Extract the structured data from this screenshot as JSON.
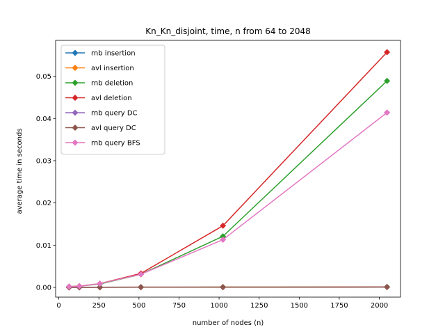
{
  "chart_data": {
    "type": "line",
    "title": "Kn_Kn_disjoint, time, n from 64 to 2048",
    "xlabel": "number of nodes (n)",
    "ylabel": "average time in seconds",
    "xlim": [
      -20,
      2132
    ],
    "ylim": [
      -0.0023,
      0.0585
    ],
    "xticks": [
      0,
      250,
      500,
      750,
      1000,
      1250,
      1500,
      1750,
      2000
    ],
    "yticks": [
      0.0,
      0.01,
      0.02,
      0.03,
      0.04,
      0.05
    ],
    "ytick_labels": [
      "0.00",
      "0.01",
      "0.02",
      "0.03",
      "0.04",
      "0.05"
    ],
    "grid": false,
    "legend_position": "upper-left",
    "marker": "diamond",
    "x": [
      64,
      128,
      256,
      512,
      1024,
      2048
    ],
    "series": [
      {
        "name": "rnb insertion",
        "color": "#1f77b4",
        "values": [
          2e-05,
          3e-05,
          4e-05,
          6e-05,
          8e-05,
          0.00012
        ]
      },
      {
        "name": "avl insertion",
        "color": "#ff7f0e",
        "values": [
          2e-05,
          3e-05,
          4e-05,
          6e-05,
          8e-05,
          0.00012
        ]
      },
      {
        "name": "rnb deletion",
        "color": "#2ca02c",
        "values": [
          0.0002,
          0.0003,
          0.0008,
          0.0031,
          0.0121,
          0.0489
        ]
      },
      {
        "name": "avl deletion",
        "color": "#d62728",
        "values": [
          0.0002,
          0.0003,
          0.0009,
          0.0033,
          0.0146,
          0.0557
        ]
      },
      {
        "name": "rnb query DC",
        "color": "#9467bd",
        "values": [
          1e-05,
          2e-05,
          3e-05,
          4e-05,
          5e-05,
          8e-05
        ]
      },
      {
        "name": "avl query DC",
        "color": "#8c564b",
        "values": [
          1e-05,
          2e-05,
          3e-05,
          4e-05,
          5e-05,
          8e-05
        ]
      },
      {
        "name": "rnb query BFS",
        "color": "#e377c2",
        "values": [
          0.0002,
          0.0003,
          0.0009,
          0.0031,
          0.0113,
          0.0414
        ]
      }
    ]
  }
}
